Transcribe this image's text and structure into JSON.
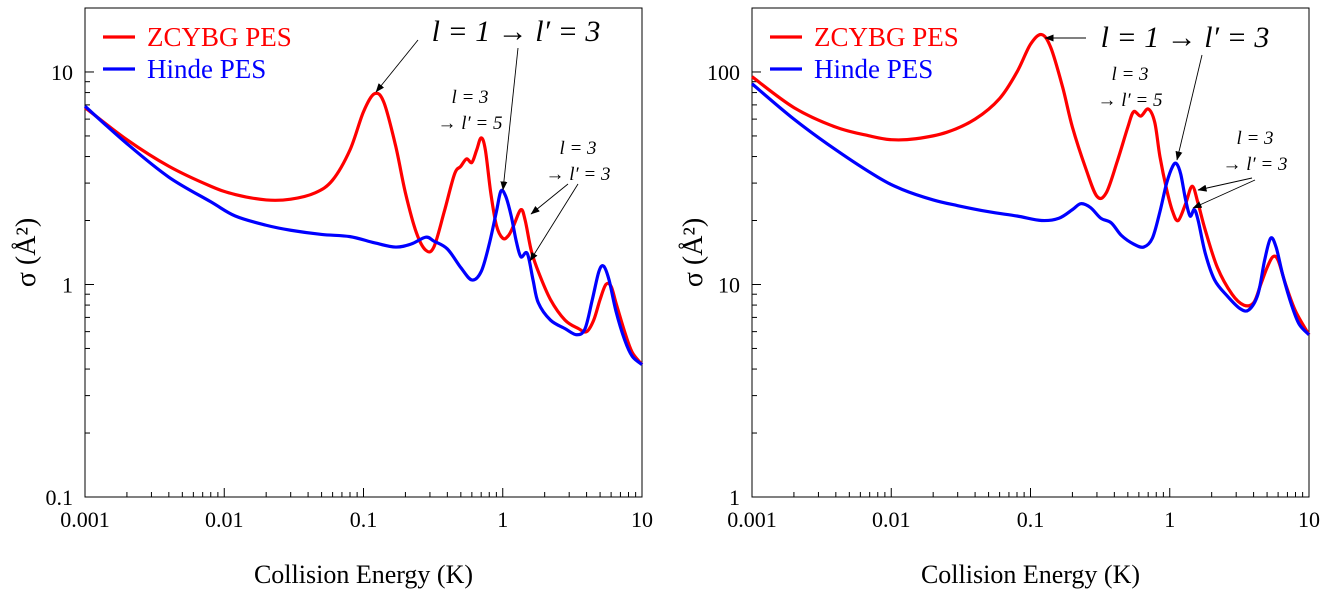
{
  "chart_data": [
    {
      "type": "line",
      "xlabel": "Collision Energy (K)",
      "ylabel": "σ (Å²)",
      "xscale": "log",
      "yscale": "log",
      "xlim": [
        0.001,
        10
      ],
      "ylim": [
        0.1,
        20
      ],
      "xticks": [
        0.001,
        0.01,
        0.1,
        1,
        10
      ],
      "xtick_labels": [
        "0.001",
        "0.01",
        "0.1",
        "1",
        "10"
      ],
      "yticks": [
        0.1,
        1,
        10
      ],
      "ytick_labels": [
        "0.1",
        "1",
        "10"
      ],
      "grid": false,
      "legend_position": "top-left",
      "series": [
        {
          "name": "ZCYBG PES",
          "color": "#ff0000",
          "points": [
            [
              0.001,
              6.8
            ],
            [
              0.002,
              4.8
            ],
            [
              0.004,
              3.6
            ],
            [
              0.008,
              2.9
            ],
            [
              0.012,
              2.65
            ],
            [
              0.02,
              2.5
            ],
            [
              0.03,
              2.52
            ],
            [
              0.045,
              2.7
            ],
            [
              0.06,
              3.1
            ],
            [
              0.08,
              4.3
            ],
            [
              0.1,
              6.5
            ],
            [
              0.12,
              7.9
            ],
            [
              0.14,
              7.2
            ],
            [
              0.17,
              4.5
            ],
            [
              0.2,
              2.7
            ],
            [
              0.24,
              1.75
            ],
            [
              0.28,
              1.45
            ],
            [
              0.32,
              1.5
            ],
            [
              0.38,
              2.2
            ],
            [
              0.45,
              3.3
            ],
            [
              0.5,
              3.6
            ],
            [
              0.55,
              3.9
            ],
            [
              0.6,
              3.75
            ],
            [
              0.65,
              4.3
            ],
            [
              0.7,
              4.9
            ],
            [
              0.75,
              4.3
            ],
            [
              0.82,
              2.7
            ],
            [
              0.9,
              1.9
            ],
            [
              1.0,
              1.65
            ],
            [
              1.1,
              1.7
            ],
            [
              1.2,
              1.9
            ],
            [
              1.35,
              2.25
            ],
            [
              1.45,
              2.0
            ],
            [
              1.6,
              1.45
            ],
            [
              1.8,
              1.15
            ],
            [
              2.2,
              0.85
            ],
            [
              2.8,
              0.68
            ],
            [
              3.5,
              0.62
            ],
            [
              4.0,
              0.6
            ],
            [
              4.5,
              0.68
            ],
            [
              5.0,
              0.85
            ],
            [
              5.5,
              1.0
            ],
            [
              6.0,
              0.98
            ],
            [
              6.5,
              0.82
            ],
            [
              7.5,
              0.6
            ],
            [
              8.5,
              0.48
            ],
            [
              10,
              0.42
            ]
          ]
        },
        {
          "name": "Hinde PES",
          "color": "#0000ff",
          "points": [
            [
              0.001,
              6.9
            ],
            [
              0.002,
              4.6
            ],
            [
              0.004,
              3.2
            ],
            [
              0.008,
              2.45
            ],
            [
              0.012,
              2.1
            ],
            [
              0.02,
              1.9
            ],
            [
              0.03,
              1.8
            ],
            [
              0.05,
              1.72
            ],
            [
              0.08,
              1.68
            ],
            [
              0.12,
              1.57
            ],
            [
              0.17,
              1.5
            ],
            [
              0.22,
              1.55
            ],
            [
              0.28,
              1.67
            ],
            [
              0.32,
              1.6
            ],
            [
              0.4,
              1.47
            ],
            [
              0.5,
              1.2
            ],
            [
              0.6,
              1.05
            ],
            [
              0.7,
              1.15
            ],
            [
              0.8,
              1.55
            ],
            [
              0.9,
              2.2
            ],
            [
              0.97,
              2.75
            ],
            [
              1.05,
              2.6
            ],
            [
              1.15,
              2.1
            ],
            [
              1.25,
              1.6
            ],
            [
              1.35,
              1.35
            ],
            [
              1.5,
              1.4
            ],
            [
              1.65,
              1.05
            ],
            [
              1.8,
              0.82
            ],
            [
              2.2,
              0.68
            ],
            [
              2.8,
              0.62
            ],
            [
              3.4,
              0.58
            ],
            [
              3.9,
              0.62
            ],
            [
              4.4,
              0.85
            ],
            [
              4.9,
              1.15
            ],
            [
              5.3,
              1.22
            ],
            [
              5.8,
              1.05
            ],
            [
              6.5,
              0.75
            ],
            [
              7.5,
              0.55
            ],
            [
              8.5,
              0.46
            ],
            [
              10,
              0.42
            ]
          ]
        }
      ],
      "annotations": [
        {
          "lines": [
            "l = 1 → l′ = 3"
          ],
          "size": "large"
        },
        {
          "lines": [
            "l = 3",
            "→ l′ = 5"
          ],
          "size": "small"
        },
        {
          "lines": [
            "l = 3",
            "→ l′ = 3"
          ],
          "size": "small"
        }
      ]
    },
    {
      "type": "line",
      "xlabel": "Collision Energy (K)",
      "ylabel": "σ (Å²)",
      "xscale": "log",
      "yscale": "log",
      "xlim": [
        0.001,
        10
      ],
      "ylim": [
        1,
        200
      ],
      "xticks": [
        0.001,
        0.01,
        0.1,
        1,
        10
      ],
      "xtick_labels": [
        "0.001",
        "0.01",
        "0.1",
        "1",
        "10"
      ],
      "yticks": [
        1,
        10,
        100
      ],
      "ytick_labels": [
        "1",
        "10",
        "100"
      ],
      "grid": false,
      "legend_position": "top-left",
      "series": [
        {
          "name": "ZCYBG PES",
          "color": "#ff0000",
          "points": [
            [
              0.001,
              95
            ],
            [
              0.002,
              68
            ],
            [
              0.004,
              55
            ],
            [
              0.007,
              50
            ],
            [
              0.01,
              48
            ],
            [
              0.015,
              48.5
            ],
            [
              0.025,
              52
            ],
            [
              0.04,
              60
            ],
            [
              0.06,
              75
            ],
            [
              0.08,
              100
            ],
            [
              0.1,
              135
            ],
            [
              0.12,
              150
            ],
            [
              0.14,
              130
            ],
            [
              0.17,
              85
            ],
            [
              0.2,
              55
            ],
            [
              0.25,
              35
            ],
            [
              0.3,
              26
            ],
            [
              0.35,
              27
            ],
            [
              0.42,
              38
            ],
            [
              0.5,
              55
            ],
            [
              0.55,
              65
            ],
            [
              0.62,
              62
            ],
            [
              0.7,
              67
            ],
            [
              0.78,
              58
            ],
            [
              0.85,
              40
            ],
            [
              0.95,
              28
            ],
            [
              1.05,
              22
            ],
            [
              1.15,
              20
            ],
            [
              1.3,
              24
            ],
            [
              1.45,
              29
            ],
            [
              1.6,
              24
            ],
            [
              1.8,
              18
            ],
            [
              2.2,
              12
            ],
            [
              2.8,
              9
            ],
            [
              3.4,
              8
            ],
            [
              4.0,
              8.2
            ],
            [
              4.5,
              10
            ],
            [
              5.0,
              12
            ],
            [
              5.5,
              13.5
            ],
            [
              6.0,
              13
            ],
            [
              6.8,
              10
            ],
            [
              8,
              7.5
            ],
            [
              10,
              5.8
            ]
          ]
        },
        {
          "name": "Hinde PES",
          "color": "#0000ff",
          "points": [
            [
              0.001,
              88
            ],
            [
              0.002,
              60
            ],
            [
              0.004,
              43
            ],
            [
              0.008,
              32
            ],
            [
              0.012,
              28
            ],
            [
              0.02,
              25
            ],
            [
              0.03,
              23.5
            ],
            [
              0.05,
              22
            ],
            [
              0.08,
              21
            ],
            [
              0.12,
              20
            ],
            [
              0.16,
              20.5
            ],
            [
              0.2,
              22.5
            ],
            [
              0.23,
              24
            ],
            [
              0.27,
              23
            ],
            [
              0.32,
              20.5
            ],
            [
              0.38,
              19.5
            ],
            [
              0.45,
              17
            ],
            [
              0.55,
              15.5
            ],
            [
              0.65,
              15
            ],
            [
              0.75,
              16.5
            ],
            [
              0.85,
              22
            ],
            [
              0.95,
              30
            ],
            [
              1.05,
              36
            ],
            [
              1.12,
              37
            ],
            [
              1.2,
              33
            ],
            [
              1.3,
              25
            ],
            [
              1.4,
              21
            ],
            [
              1.5,
              22.5
            ],
            [
              1.6,
              20
            ],
            [
              1.8,
              14
            ],
            [
              2.1,
              10.5
            ],
            [
              2.6,
              8.8
            ],
            [
              3.2,
              7.7
            ],
            [
              3.7,
              7.6
            ],
            [
              4.3,
              9
            ],
            [
              4.8,
              13
            ],
            [
              5.3,
              16.5
            ],
            [
              5.8,
              15
            ],
            [
              6.5,
              11
            ],
            [
              7.5,
              8
            ],
            [
              8.5,
              6.5
            ],
            [
              10,
              5.8
            ]
          ]
        }
      ],
      "annotations": [
        {
          "lines": [
            "l = 1 → l′ = 3"
          ],
          "size": "large"
        },
        {
          "lines": [
            "l = 3",
            "→ l′ = 5"
          ],
          "size": "small"
        },
        {
          "lines": [
            "l = 3",
            "→ l′ = 3"
          ],
          "size": "small"
        }
      ]
    }
  ]
}
